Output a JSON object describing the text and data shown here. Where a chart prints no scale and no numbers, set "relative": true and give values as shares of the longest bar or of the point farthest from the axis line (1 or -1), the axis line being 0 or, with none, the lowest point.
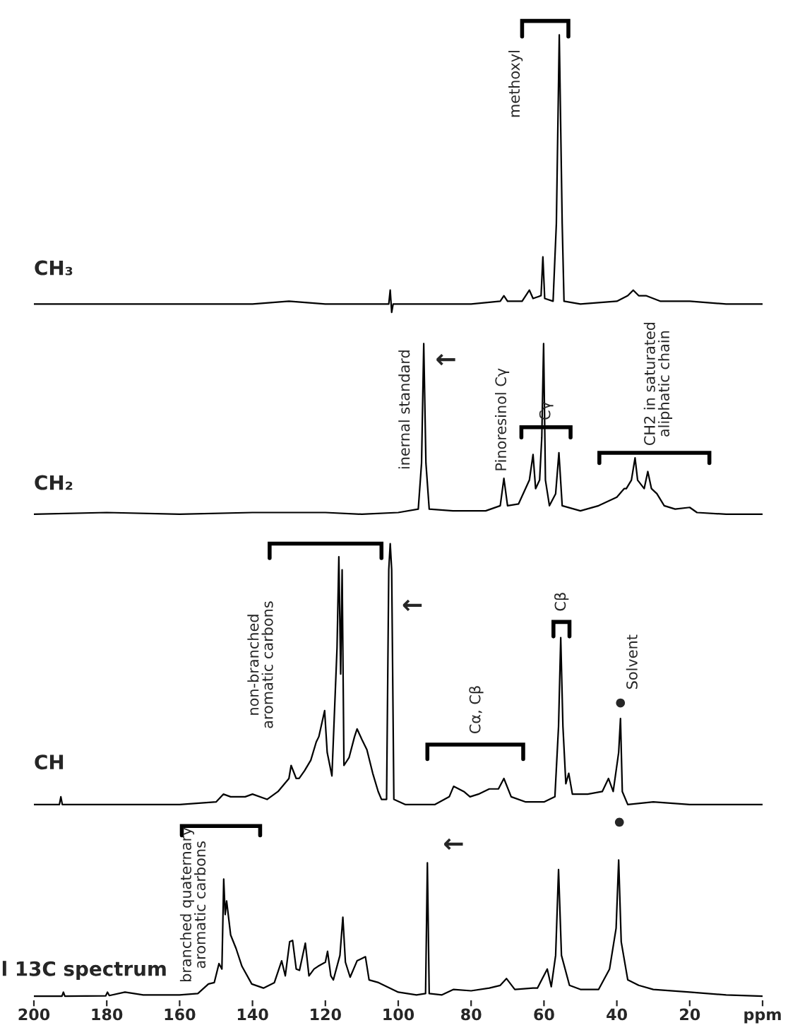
{
  "chart_data": [
    {
      "type": "line",
      "relative": true,
      "xlim": [
        200,
        0
      ],
      "tick_labels": false,
      "series": [
        {
          "name": "CH₃",
          "color": "#000000",
          "x": [
            200,
            180,
            160,
            140,
            130,
            120,
            105,
            102.6,
            102.2,
            101.8,
            101.4,
            90,
            80,
            72,
            71,
            70,
            66,
            64,
            63,
            60.8,
            60.3,
            59.8,
            57.5,
            56.6,
            55.8,
            55.0,
            54.5,
            50,
            40,
            37,
            35.5,
            34,
            32,
            28,
            20,
            10,
            0
          ],
          "values": [
            0.03,
            0.03,
            0.03,
            0.03,
            0.04,
            0.03,
            0.03,
            0.03,
            0.08,
            0,
            0.03,
            0.03,
            0.03,
            0.04,
            0.06,
            0.04,
            0.04,
            0.08,
            0.05,
            0.06,
            0.2,
            0.05,
            0.04,
            0.32,
            1.0,
            0.32,
            0.04,
            0.03,
            0.04,
            0.06,
            0.08,
            0.06,
            0.06,
            0.04,
            0.04,
            0.03,
            0.03
          ]
        }
      ],
      "annotations": [
        "methoxyl"
      ]
    },
    {
      "type": "line",
      "relative": true,
      "xlim": [
        200,
        0
      ],
      "tick_labels": false,
      "series": [
        {
          "name": "CH₂",
          "color": "#000000",
          "x": [
            200,
            180,
            160,
            140,
            120,
            110,
            100,
            94.5,
            93.6,
            93.0,
            92.4,
            91.5,
            85,
            76,
            72,
            71,
            70,
            67,
            64,
            63,
            62.3,
            61.2,
            60.6,
            60.1,
            59.6,
            58.5,
            56.8,
            55.9,
            55,
            50,
            45,
            40,
            38,
            37.4,
            36,
            35,
            34.3,
            32.5,
            31.5,
            30.5,
            29,
            27,
            24,
            20,
            18,
            10,
            0
          ],
          "values": [
            0,
            0.01,
            0,
            0.01,
            0.01,
            0,
            0.01,
            0.03,
            0.3,
            1.0,
            0.3,
            0.03,
            0.02,
            0.02,
            0.05,
            0.21,
            0.05,
            0.06,
            0.2,
            0.35,
            0.15,
            0.2,
            0.45,
            1.0,
            0.2,
            0.05,
            0.12,
            0.36,
            0.05,
            0.02,
            0.05,
            0.1,
            0.15,
            0.15,
            0.2,
            0.33,
            0.2,
            0.15,
            0.25,
            0.15,
            0.12,
            0.05,
            0.03,
            0.04,
            0.01,
            0,
            0
          ]
        }
      ],
      "annotations": [
        "inernal standard",
        "←",
        "Pinoresinol Cγ",
        "Cγ",
        "CH2 in saturated\naliphatic chain"
      ]
    },
    {
      "type": "line",
      "relative": true,
      "xlim": [
        200,
        0
      ],
      "tick_labels": false,
      "series": [
        {
          "name": "CH",
          "color": "#000000",
          "x": [
            200,
            193,
            192.6,
            192.2,
            180,
            160,
            150,
            148,
            146,
            142,
            140,
            136,
            133,
            130,
            129.4,
            128,
            127.2,
            125.7,
            124,
            122.5,
            121.8,
            120.2,
            119.5,
            118.2,
            116.8,
            116.3,
            115.8,
            115.4,
            114.9,
            113.5,
            112,
            111.3,
            110,
            108.6,
            107,
            105.5,
            104.6,
            103.2,
            102.6,
            102.2,
            101.8,
            101.2,
            98,
            90,
            86,
            84.8,
            82,
            80.3,
            78,
            75,
            72.5,
            71,
            69,
            65,
            60,
            57,
            56,
            55.4,
            54.8,
            54,
            53.2,
            52.2,
            48,
            44,
            42.3,
            41,
            39.5,
            39.0,
            38.5,
            37,
            30,
            20,
            0
          ],
          "values": [
            0,
            0,
            0.03,
            0,
            0,
            0,
            0.01,
            0.04,
            0.03,
            0.03,
            0.04,
            0.02,
            0.05,
            0.1,
            0.15,
            0.1,
            0.1,
            0.13,
            0.17,
            0.24,
            0.26,
            0.36,
            0.2,
            0.11,
            0.6,
            0.95,
            0.5,
            0.9,
            0.15,
            0.18,
            0.26,
            0.29,
            0.25,
            0.21,
            0.12,
            0.05,
            0.02,
            0.02,
            0.9,
            1.0,
            0.9,
            0.02,
            0,
            0,
            0.03,
            0.07,
            0.05,
            0.03,
            0.04,
            0.06,
            0.06,
            0.1,
            0.03,
            0.01,
            0.01,
            0.03,
            0.3,
            0.64,
            0.3,
            0.08,
            0.12,
            0.04,
            0.04,
            0.05,
            0.1,
            0.05,
            0.2,
            0.33,
            0.05,
            0,
            0.01,
            0,
            0
          ]
        }
      ],
      "annotations": [
        "non-branched\naromatic carbons",
        "←",
        "Cα, Cβ",
        "Cβ",
        "•",
        "Solvent"
      ]
    },
    {
      "type": "line",
      "relative": true,
      "xlim": [
        200,
        0
      ],
      "xticks": [
        200,
        180,
        160,
        140,
        120,
        100,
        80,
        60,
        40,
        20,
        {
          "value": 0,
          "label": "ppm"
        }
      ],
      "series": [
        {
          "name": "l 13C spectrum",
          "color": "#000000",
          "x": [
            200,
            192.3,
            191.9,
            191.5,
            180.3,
            179.8,
            179.3,
            175,
            170,
            160,
            155,
            152.1,
            150.5,
            149.2,
            148.4,
            147.9,
            147.5,
            147.1,
            146,
            144.5,
            142.9,
            140.2,
            137,
            134,
            132,
            131,
            129.8,
            129,
            128,
            127.1,
            125.5,
            124.5,
            123.1,
            122,
            120,
            119.4,
            118.5,
            117.8,
            116,
            115.2,
            114.5,
            113.2,
            111.3,
            109,
            108,
            105.4,
            100,
            95,
            92.5,
            92.0,
            91.5,
            88,
            84.8,
            80,
            75,
            72,
            70.3,
            68,
            63,
            61.8,
            59.1,
            58,
            56.8,
            56,
            55.2,
            53,
            50,
            45,
            42,
            40.2,
            39.5,
            38.8,
            37,
            34,
            30,
            20,
            10,
            0
          ],
          "values": [
            0,
            0,
            0.03,
            0,
            0.003,
            0.03,
            0.005,
            0.03,
            0.01,
            0.01,
            0.02,
            0.09,
            0.1,
            0.24,
            0.2,
            0.86,
            0.6,
            0.7,
            0.45,
            0.35,
            0.22,
            0.09,
            0.06,
            0.1,
            0.26,
            0.15,
            0.4,
            0.41,
            0.2,
            0.19,
            0.39,
            0.15,
            0.2,
            0.22,
            0.25,
            0.33,
            0.15,
            0.12,
            0.3,
            0.58,
            0.25,
            0.14,
            0.26,
            0.29,
            0.12,
            0.1,
            0.03,
            0.01,
            0.02,
            0.98,
            0.02,
            0.01,
            0.05,
            0.04,
            0.06,
            0.08,
            0.13,
            0.05,
            0.06,
            0.06,
            0.2,
            0.07,
            0.3,
            0.93,
            0.3,
            0.08,
            0.05,
            0.05,
            0.2,
            0.5,
            1.0,
            0.4,
            0.12,
            0.08,
            0.05,
            0.03,
            0.01,
            0
          ]
        }
      ],
      "annotations": [
        "branched quaternary\naromatic carbons",
        "←",
        "•"
      ]
    }
  ]
}
